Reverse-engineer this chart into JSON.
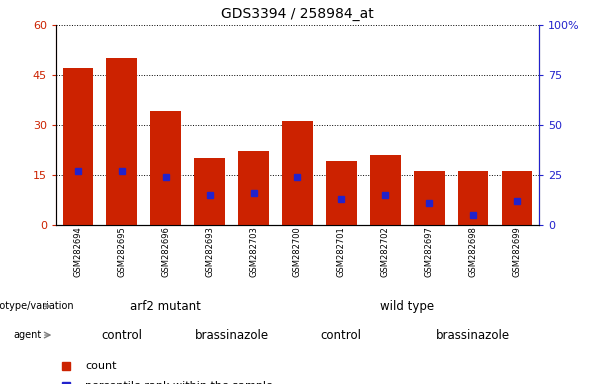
{
  "title": "GDS3394 / 258984_at",
  "samples": [
    "GSM282694",
    "GSM282695",
    "GSM282696",
    "GSM282693",
    "GSM282703",
    "GSM282700",
    "GSM282701",
    "GSM282702",
    "GSM282697",
    "GSM282698",
    "GSM282699"
  ],
  "counts": [
    47,
    50,
    34,
    20,
    22,
    31,
    19,
    21,
    16,
    16,
    16
  ],
  "percentile_ranks": [
    27,
    27,
    24,
    15,
    16,
    24,
    13,
    15,
    11,
    5,
    12
  ],
  "ylim_left": [
    0,
    60
  ],
  "ylim_right": [
    0,
    100
  ],
  "yticks_left": [
    0,
    15,
    30,
    45,
    60
  ],
  "yticks_right": [
    0,
    25,
    50,
    75,
    100
  ],
  "ytick_right_labels": [
    "0",
    "25",
    "50",
    "75",
    "100%"
  ],
  "bar_color": "#cc2200",
  "dot_color": "#2222cc",
  "xlabel_bg": "#cccccc",
  "plot_bg": "#ffffff",
  "genotype_groups": [
    {
      "label": "arf2 mutant",
      "start": 0,
      "end": 5,
      "color": "#bbeeaa"
    },
    {
      "label": "wild type",
      "start": 5,
      "end": 11,
      "color": "#44dd44"
    }
  ],
  "agent_groups": [
    {
      "label": "control",
      "start": 0,
      "end": 3,
      "color": "#ee99ee"
    },
    {
      "label": "brassinazole",
      "start": 3,
      "end": 5,
      "color": "#cc44cc"
    },
    {
      "label": "control",
      "start": 5,
      "end": 8,
      "color": "#ee99ee"
    },
    {
      "label": "brassinazole",
      "start": 8,
      "end": 11,
      "color": "#cc44cc"
    }
  ]
}
